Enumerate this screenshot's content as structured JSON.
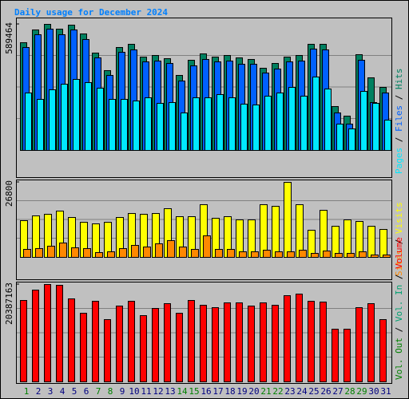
{
  "chart_data": [
    {
      "type": "bar",
      "title": "Daily usage for December 2024",
      "ylim": [
        0,
        589464
      ],
      "yticks": [
        589464
      ],
      "series": [
        {
          "name": "Hits",
          "color": "#008060",
          "values": [
            503685,
            563381,
            589464,
            567112,
            585767,
            544726,
            455182,
            373100,
            481299,
            496223,
            436527,
            443989,
            429065,
            350714,
            421603,
            451451,
            436527,
            443989,
            432796,
            425334,
            384293,
            406679,
            436527,
            443989,
            496223,
            496223,
            205205,
            160433,
            447720,
            339521,
            294749
          ]
        },
        {
          "name": "Files",
          "color": "#0060ff",
          "values": [
            481299,
            540995,
            567112,
            540995,
            563381,
            518609,
            432796,
            350714,
            458913,
            470106,
            414141,
            417872,
            406679,
            324597,
            395486,
            425334,
            414141,
            417872,
            402948,
            402948,
            361907,
            380562,
            414141,
            417872,
            473837,
            470106,
            175357,
            123123,
            421603,
            223860,
            268632
          ]
        },
        {
          "name": "Pages",
          "color": "#00e8ff",
          "values": [
            268632,
            238784,
            283556,
            309673,
            332059,
            317135,
            291018,
            238784,
            238784,
            231322,
            246246,
            220129,
            223860,
            175357,
            246246,
            246246,
            261170,
            246246,
            216398,
            212667,
            253708,
            268632,
            294749,
            253708,
            343252,
            287287,
            123123,
            100737,
            276094,
            220129,
            141778
          ]
        }
      ]
    },
    {
      "type": "bar",
      "ylim": [
        0,
        26800
      ],
      "yticks": [
        26800
      ],
      "series": [
        {
          "name": "Visits",
          "color": "#ffff00",
          "values": [
            13115,
            14825,
            15395,
            16536,
            14255,
            12544,
            11974,
            12544,
            14255,
            15681,
            15395,
            15681,
            17391,
            14540,
            14540,
            18817,
            13970,
            14540,
            13400,
            13400,
            18817,
            18246,
            26800,
            18817,
            9693,
            16821,
            11119,
            13400,
            12830,
            11119,
            9979
          ]
        },
        {
          "name": "Sites",
          "color": "#ff8800",
          "values": [
            2850,
            3135,
            3990,
            5130,
            3420,
            3135,
            1710,
            1995,
            3135,
            4275,
            3705,
            4845,
            5985,
            3705,
            2850,
            7695,
            2850,
            2850,
            1995,
            1995,
            2565,
            1995,
            1995,
            2565,
            1425,
            2280,
            1425,
            1425,
            1995,
            855,
            855
          ]
        }
      ]
    },
    {
      "type": "bar",
      "ylim": [
        0,
        20387163
      ],
      "yticks": [
        20387163
      ],
      "categories": [
        "1",
        "2",
        "3",
        "4",
        "5",
        "6",
        "7",
        "8",
        "9",
        "10",
        "11",
        "12",
        "13",
        "14",
        "15",
        "16",
        "17",
        "18",
        "19",
        "20",
        "21",
        "22",
        "23",
        "24",
        "25",
        "26",
        "27",
        "28",
        "29",
        "30",
        "31"
      ],
      "category_color": "#000080",
      "weekend_color": "#008000",
      "weekend_days": [
        1,
        7,
        8,
        14,
        15,
        21,
        22,
        28,
        29
      ],
      "series": [
        {
          "name": "Volume",
          "color": "#ff0000",
          "values": [
            17045016,
            19217420,
            20387163,
            20220068,
            17379232,
            14371288,
            16877908,
            13034424,
            15875260,
            16877908,
            13869964,
            15373936,
            16376584,
            14371288,
            17045016,
            16042368,
            15541044,
            16543692,
            16543692,
            15875260,
            16543692,
            16042368,
            18047664,
            18381880,
            16877908,
            16710800,
            11029128,
            11029128,
            15541044,
            16376584,
            13034424
          ]
        },
        {
          "name": "Vol. In",
          "color": "#00a070"
        },
        {
          "name": "Vol. Out",
          "color": "#008000"
        }
      ]
    }
  ]
}
